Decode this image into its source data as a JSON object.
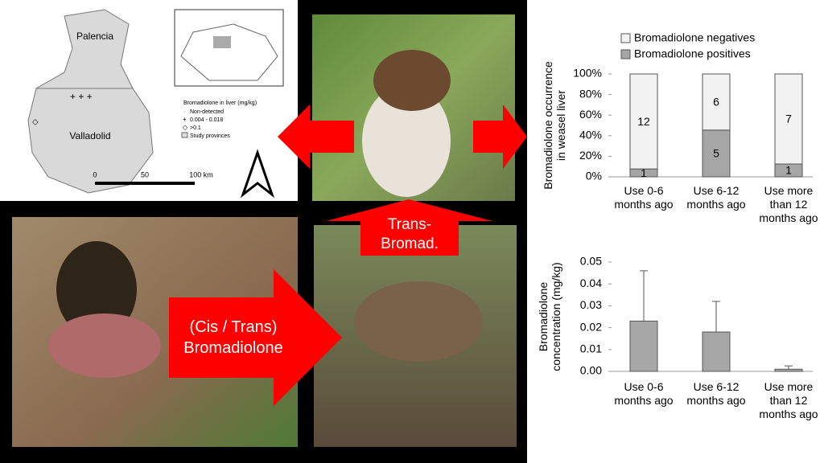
{
  "map": {
    "provinces": [
      "Palencia",
      "Valladolid"
    ],
    "legend_title": "Bromadiolone in liver (mg/kg)",
    "legend": [
      "Non-detected",
      "0.004 - 0.018",
      ">0.1",
      "Study provinces"
    ],
    "scale": [
      "0",
      "50",
      "100 km"
    ]
  },
  "arrows": {
    "up": "Trans-\nBromad.",
    "right": "(Cis / Trans)\nBromadiolone"
  },
  "chart_data": [
    {
      "type": "stacked-bar",
      "stacking": "percent",
      "y_label": "Bromadiolone occurrence\nin weasel liver",
      "categories": [
        "Use 0-6\nmonths ago",
        "Use 6-12\nmonths ago",
        "Use more\nthan 12\nmonths ago"
      ],
      "series": [
        {
          "name": "Bromadiolone positives",
          "color": "#a6a6a6",
          "values": [
            1,
            5,
            1
          ]
        },
        {
          "name": "Bromadiolone negatives",
          "color": "#f2f2f2",
          "values": [
            12,
            6,
            7
          ]
        }
      ],
      "ylim": [
        0,
        100
      ],
      "yticks": [
        {
          "value": 0,
          "label": "0%"
        },
        {
          "value": 20,
          "label": "20%"
        },
        {
          "value": 40,
          "label": "40%"
        },
        {
          "value": 60,
          "label": "60%"
        },
        {
          "value": 80,
          "label": "80%"
        },
        {
          "value": 100,
          "label": "100%"
        }
      ]
    },
    {
      "type": "bar",
      "y_label": "Bromadiolone\nconcentration (mg/kg)",
      "color": "#a6a6a6",
      "categories": [
        "Use 0-6\nmonths ago",
        "Use 6-12\nmonths ago",
        "Use more\nthan 12\nmonths ago"
      ],
      "values": [
        0.023,
        0.018,
        0.001
      ],
      "errors": [
        0.023,
        0.014,
        0.0015
      ],
      "ylim": [
        0,
        0.05
      ],
      "yticks": [
        {
          "value": 0,
          "label": "0.00"
        },
        {
          "value": 0.01,
          "label": "0.01"
        },
        {
          "value": 0.02,
          "label": "0.02"
        },
        {
          "value": 0.03,
          "label": "0.03"
        },
        {
          "value": 0.04,
          "label": "0.04"
        },
        {
          "value": 0.05,
          "label": "0.05"
        }
      ]
    }
  ]
}
